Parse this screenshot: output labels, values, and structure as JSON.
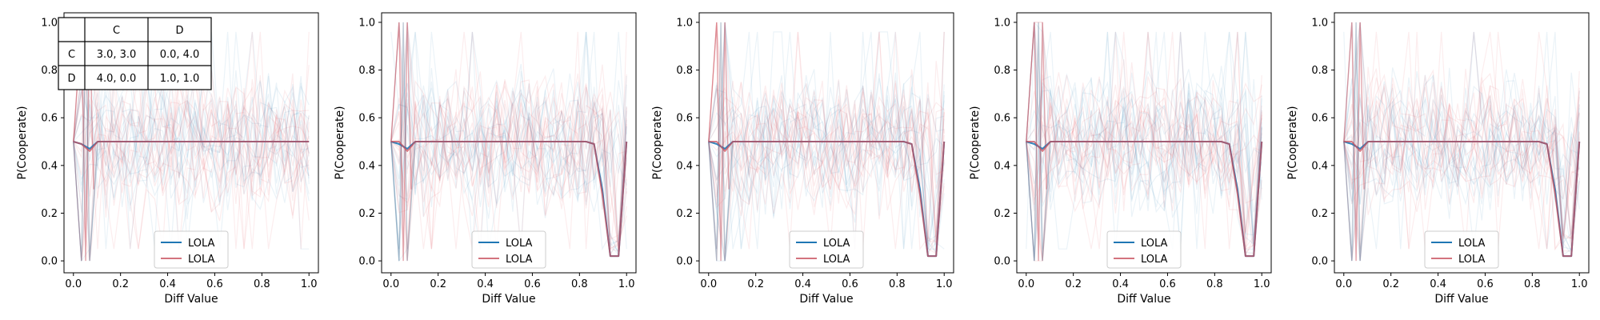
{
  "figure": {
    "panel_count": 5
  },
  "chart_data": [
    {
      "type": "line",
      "xlabel": "Diff Value",
      "ylabel": "P(Cooperate)",
      "xlim": [
        -0.04,
        1.04
      ],
      "ylim": [
        -0.05,
        1.04
      ],
      "xticks": [
        "0.0",
        "0.2",
        "0.4",
        "0.6",
        "0.8",
        "1.0"
      ],
      "yticks": [
        "0.0",
        "0.2",
        "0.4",
        "0.6",
        "0.8",
        "1.0"
      ],
      "x": [
        0.0,
        0.034,
        0.069,
        0.103,
        0.138,
        0.172,
        0.207,
        0.241,
        0.276,
        0.31,
        0.345,
        0.379,
        0.414,
        0.448,
        0.483,
        0.517,
        0.552,
        0.586,
        0.621,
        0.655,
        0.69,
        0.724,
        0.759,
        0.793,
        0.828,
        0.862,
        0.897,
        0.931,
        0.966,
        1.0
      ],
      "series": [
        {
          "name": "LOLA",
          "color": "#1f77b4",
          "values": [
            0.5,
            0.49,
            0.47,
            0.5,
            0.5,
            0.5,
            0.5,
            0.5,
            0.5,
            0.5,
            0.5,
            0.5,
            0.5,
            0.5,
            0.5,
            0.5,
            0.5,
            0.5,
            0.5,
            0.5,
            0.5,
            0.5,
            0.5,
            0.5,
            0.5,
            0.5,
            0.5,
            0.5,
            0.5,
            0.5
          ]
        },
        {
          "name": "LOLA",
          "color": "#c8505e",
          "values": [
            0.5,
            0.49,
            0.46,
            0.5,
            0.5,
            0.5,
            0.5,
            0.5,
            0.5,
            0.5,
            0.5,
            0.5,
            0.5,
            0.5,
            0.5,
            0.5,
            0.5,
            0.5,
            0.5,
            0.5,
            0.5,
            0.5,
            0.5,
            0.5,
            0.5,
            0.5,
            0.5,
            0.5,
            0.5,
            0.5
          ]
        }
      ],
      "legend": "lower-center",
      "payoff_table": {
        "col_headers": [
          "C",
          "D"
        ],
        "rows": [
          {
            "label": "C",
            "cells": [
              "3.0, 3.0",
              "0.0, 4.0"
            ]
          },
          {
            "label": "D",
            "cells": [
              "4.0, 0.0",
              "1.0, 1.0"
            ]
          }
        ]
      }
    },
    {
      "type": "line",
      "xlabel": "Diff Value",
      "ylabel": "P(Cooperate)",
      "xlim": [
        -0.04,
        1.04
      ],
      "ylim": [
        -0.05,
        1.04
      ],
      "xticks": [
        "0.0",
        "0.2",
        "0.4",
        "0.6",
        "0.8",
        "1.0"
      ],
      "yticks": [
        "0.0",
        "0.2",
        "0.4",
        "0.6",
        "0.8",
        "1.0"
      ],
      "x": [
        0.0,
        0.034,
        0.069,
        0.103,
        0.138,
        0.172,
        0.207,
        0.241,
        0.276,
        0.31,
        0.345,
        0.379,
        0.414,
        0.448,
        0.483,
        0.517,
        0.552,
        0.586,
        0.621,
        0.655,
        0.69,
        0.724,
        0.759,
        0.793,
        0.828,
        0.862,
        0.897,
        0.931,
        0.966,
        1.0
      ],
      "series": [
        {
          "name": "LOLA",
          "color": "#1f77b4",
          "values": [
            0.5,
            0.49,
            0.47,
            0.5,
            0.5,
            0.5,
            0.5,
            0.5,
            0.5,
            0.5,
            0.5,
            0.5,
            0.5,
            0.5,
            0.5,
            0.5,
            0.5,
            0.5,
            0.5,
            0.5,
            0.5,
            0.5,
            0.5,
            0.5,
            0.5,
            0.49,
            0.3,
            0.02,
            0.02,
            0.5
          ]
        },
        {
          "name": "LOLA",
          "color": "#c8505e",
          "values": [
            0.5,
            0.5,
            0.46,
            0.5,
            0.5,
            0.5,
            0.5,
            0.5,
            0.5,
            0.5,
            0.5,
            0.5,
            0.5,
            0.5,
            0.5,
            0.5,
            0.5,
            0.5,
            0.5,
            0.5,
            0.5,
            0.5,
            0.5,
            0.5,
            0.5,
            0.49,
            0.28,
            0.02,
            0.02,
            0.5
          ]
        }
      ],
      "legend": "lower-center"
    },
    {
      "type": "line",
      "xlabel": "Diff Value",
      "ylabel": "P(Cooperate)",
      "xlim": [
        -0.04,
        1.04
      ],
      "ylim": [
        -0.05,
        1.04
      ],
      "xticks": [
        "0.0",
        "0.2",
        "0.4",
        "0.6",
        "0.8",
        "1.0"
      ],
      "yticks": [
        "0.0",
        "0.2",
        "0.4",
        "0.6",
        "0.8",
        "1.0"
      ],
      "x": [
        0.0,
        0.034,
        0.069,
        0.103,
        0.138,
        0.172,
        0.207,
        0.241,
        0.276,
        0.31,
        0.345,
        0.379,
        0.414,
        0.448,
        0.483,
        0.517,
        0.552,
        0.586,
        0.621,
        0.655,
        0.69,
        0.724,
        0.759,
        0.793,
        0.828,
        0.862,
        0.897,
        0.931,
        0.966,
        1.0
      ],
      "series": [
        {
          "name": "LOLA",
          "color": "#1f77b4",
          "values": [
            0.5,
            0.49,
            0.47,
            0.5,
            0.5,
            0.5,
            0.5,
            0.5,
            0.5,
            0.5,
            0.5,
            0.5,
            0.5,
            0.5,
            0.5,
            0.5,
            0.5,
            0.5,
            0.5,
            0.5,
            0.5,
            0.5,
            0.5,
            0.5,
            0.5,
            0.49,
            0.3,
            0.02,
            0.02,
            0.5
          ]
        },
        {
          "name": "LOLA",
          "color": "#c8505e",
          "values": [
            0.5,
            0.5,
            0.46,
            0.5,
            0.5,
            0.5,
            0.5,
            0.5,
            0.5,
            0.5,
            0.5,
            0.5,
            0.5,
            0.5,
            0.5,
            0.5,
            0.5,
            0.5,
            0.5,
            0.5,
            0.5,
            0.5,
            0.5,
            0.5,
            0.5,
            0.49,
            0.28,
            0.02,
            0.02,
            0.5
          ]
        }
      ],
      "legend": "lower-center"
    },
    {
      "type": "line",
      "xlabel": "Diff Value",
      "ylabel": "P(Cooperate)",
      "xlim": [
        -0.04,
        1.04
      ],
      "ylim": [
        -0.05,
        1.04
      ],
      "xticks": [
        "0.0",
        "0.2",
        "0.4",
        "0.6",
        "0.8",
        "1.0"
      ],
      "yticks": [
        "0.0",
        "0.2",
        "0.4",
        "0.6",
        "0.8",
        "1.0"
      ],
      "x": [
        0.0,
        0.034,
        0.069,
        0.103,
        0.138,
        0.172,
        0.207,
        0.241,
        0.276,
        0.31,
        0.345,
        0.379,
        0.414,
        0.448,
        0.483,
        0.517,
        0.552,
        0.586,
        0.621,
        0.655,
        0.69,
        0.724,
        0.759,
        0.793,
        0.828,
        0.862,
        0.897,
        0.931,
        0.966,
        1.0
      ],
      "series": [
        {
          "name": "LOLA",
          "color": "#1f77b4",
          "values": [
            0.5,
            0.49,
            0.47,
            0.5,
            0.5,
            0.5,
            0.5,
            0.5,
            0.5,
            0.5,
            0.5,
            0.5,
            0.5,
            0.5,
            0.5,
            0.5,
            0.5,
            0.5,
            0.5,
            0.5,
            0.5,
            0.5,
            0.5,
            0.5,
            0.5,
            0.49,
            0.3,
            0.02,
            0.02,
            0.5
          ]
        },
        {
          "name": "LOLA",
          "color": "#c8505e",
          "values": [
            0.5,
            0.5,
            0.46,
            0.5,
            0.5,
            0.5,
            0.5,
            0.5,
            0.5,
            0.5,
            0.5,
            0.5,
            0.5,
            0.5,
            0.5,
            0.5,
            0.5,
            0.5,
            0.5,
            0.5,
            0.5,
            0.5,
            0.5,
            0.5,
            0.5,
            0.49,
            0.28,
            0.02,
            0.02,
            0.5
          ]
        }
      ],
      "legend": "lower-center"
    },
    {
      "type": "line",
      "xlabel": "Diff Value",
      "ylabel": "P(Cooperate)",
      "xlim": [
        -0.04,
        1.04
      ],
      "ylim": [
        -0.05,
        1.04
      ],
      "xticks": [
        "0.0",
        "0.2",
        "0.4",
        "0.6",
        "0.8",
        "1.0"
      ],
      "yticks": [
        "0.0",
        "0.2",
        "0.4",
        "0.6",
        "0.8",
        "1.0"
      ],
      "x": [
        0.0,
        0.034,
        0.069,
        0.103,
        0.138,
        0.172,
        0.207,
        0.241,
        0.276,
        0.31,
        0.345,
        0.379,
        0.414,
        0.448,
        0.483,
        0.517,
        0.552,
        0.586,
        0.621,
        0.655,
        0.69,
        0.724,
        0.759,
        0.793,
        0.828,
        0.862,
        0.897,
        0.931,
        0.966,
        1.0
      ],
      "series": [
        {
          "name": "LOLA",
          "color": "#1f77b4",
          "values": [
            0.5,
            0.49,
            0.47,
            0.5,
            0.5,
            0.5,
            0.5,
            0.5,
            0.5,
            0.5,
            0.5,
            0.5,
            0.5,
            0.5,
            0.5,
            0.5,
            0.5,
            0.5,
            0.5,
            0.5,
            0.5,
            0.5,
            0.5,
            0.5,
            0.5,
            0.49,
            0.3,
            0.02,
            0.02,
            0.5
          ]
        },
        {
          "name": "LOLA",
          "color": "#c8505e",
          "values": [
            0.5,
            0.5,
            0.46,
            0.5,
            0.5,
            0.5,
            0.5,
            0.5,
            0.5,
            0.5,
            0.5,
            0.5,
            0.5,
            0.5,
            0.5,
            0.5,
            0.5,
            0.5,
            0.5,
            0.5,
            0.5,
            0.5,
            0.5,
            0.5,
            0.5,
            0.49,
            0.28,
            0.02,
            0.02,
            0.5
          ]
        }
      ],
      "legend": "lower-center"
    }
  ]
}
